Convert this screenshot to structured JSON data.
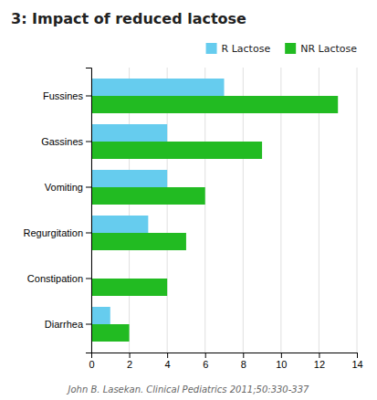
{
  "chart_data": {
    "type": "bar",
    "orientation": "horizontal",
    "title": "3: Impact of reduced lactose",
    "categories": [
      "Diarrhea",
      "Constipation",
      "Regurgitation",
      "Vomiting",
      "Gassines",
      "Fussines"
    ],
    "series": [
      {
        "name": "R Lactose",
        "color": "#66CCEE",
        "values": [
          1.0,
          0.0,
          3.0,
          4.0,
          4.0,
          7.0
        ]
      },
      {
        "name": "NR Lactose",
        "color": "#22BB22",
        "values": [
          2.0,
          4.0,
          5.0,
          6.0,
          9.0,
          13.0
        ]
      }
    ],
    "xlim": [
      0,
      14
    ],
    "xticks": [
      0,
      2,
      4,
      6,
      8,
      10,
      12,
      14
    ],
    "grid": true,
    "legend": "upper right",
    "annotations": [
      "John B. Lasekan. Clinical Pediatrics 2011;50:330-337"
    ]
  }
}
